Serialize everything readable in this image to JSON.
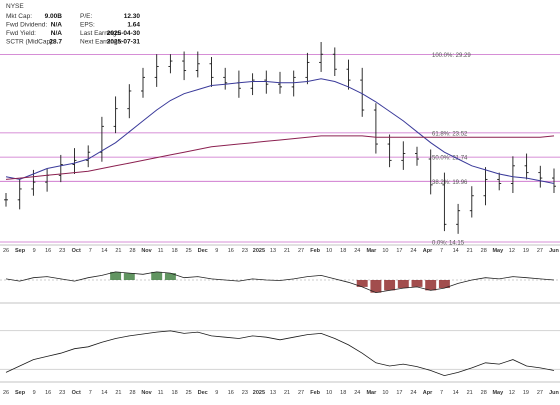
{
  "header": {
    "exchange_label": "NYSE",
    "stats": [
      {
        "label": "Mkt Cap:",
        "value": "9.00B"
      },
      {
        "label": "Fwd Dividend:",
        "value": "N/A"
      },
      {
        "label": "Fwd Yield:",
        "value": "N/A"
      },
      {
        "label": "SCTR (MidCap):",
        "value": "28.7"
      }
    ],
    "stats2": [
      {
        "label": "P/E:",
        "value": "12.30"
      },
      {
        "label": "EPS:",
        "value": "1.64"
      },
      {
        "label": "Last Earnings:",
        "value": "2025-04-30"
      },
      {
        "label": "Next Earnings:",
        "value": "2025-07-31"
      }
    ]
  },
  "chart_data": [
    {
      "type": "line",
      "panel": "price",
      "style": "ohlc-bars",
      "ylim": [
        15.5,
        30.2
      ],
      "dates": [
        "2024-08-26",
        "2024-09-03",
        "2024-09-09",
        "2024-09-16",
        "2024-09-23",
        "2024-09-30",
        "2024-10-07",
        "2024-10-14",
        "2024-10-21",
        "2024-10-28",
        "2024-11-04",
        "2024-11-11",
        "2024-11-18",
        "2024-11-25",
        "2024-12-02",
        "2024-12-09",
        "2024-12-16",
        "2024-12-23",
        "2024-12-30",
        "2025-01-06",
        "2025-01-13",
        "2025-01-21",
        "2025-01-27",
        "2025-02-03",
        "2025-02-10",
        "2025-02-18",
        "2025-02-24",
        "2025-03-03",
        "2025-03-10",
        "2025-03-17",
        "2025-03-24",
        "2025-03-31",
        "2025-04-07",
        "2025-04-14",
        "2025-04-21",
        "2025-04-28",
        "2025-05-05",
        "2025-05-12",
        "2025-05-19",
        "2025-05-27",
        "2025-06-02"
      ],
      "series": [
        {
          "values": [
            18.6,
            19.4,
            19.9,
            20.4,
            21.2,
            21.5,
            22.1,
            24.0,
            25.3,
            26.6,
            27.6,
            28.4,
            28.8,
            28.1,
            28.6,
            27.6,
            27.2,
            26.8,
            27.4,
            27.1,
            26.9,
            27.6,
            28.7,
            29.3,
            28.2,
            27.4,
            25.2,
            22.7,
            21.5,
            22.0,
            21.6,
            19.7,
            16.8,
            17.8,
            18.9,
            20.1,
            19.8,
            21.1,
            20.6,
            20.2,
            19.6
          ]
        },
        {
          "values": [
            20.3,
            20.1,
            20.5,
            20.9,
            21.1,
            21.3,
            21.6,
            22.2,
            22.8,
            23.6,
            24.4,
            25.2,
            25.9,
            26.4,
            26.7,
            27.0,
            27.1,
            27.2,
            27.3,
            27.3,
            27.2,
            27.2,
            27.3,
            27.5,
            27.3,
            26.9,
            26.4,
            25.8,
            25.1,
            24.4,
            23.6,
            22.8,
            22.1,
            21.6,
            21.1,
            20.8,
            20.5,
            20.3,
            20.2,
            20.0,
            19.8
          ]
        },
        {
          "values": [
            20.1,
            20.2,
            20.3,
            20.4,
            20.5,
            20.6,
            20.7,
            20.9,
            21.1,
            21.3,
            21.5,
            21.7,
            21.9,
            22.1,
            22.3,
            22.5,
            22.6,
            22.7,
            22.8,
            22.9,
            23.0,
            23.1,
            23.2,
            23.3,
            23.3,
            23.3,
            23.3,
            23.2,
            23.2,
            23.2,
            23.2,
            23.2,
            23.2,
            23.2,
            23.2,
            23.2,
            23.2,
            23.2,
            23.2,
            23.2,
            23.3
          ]
        }
      ],
      "fib_levels": [
        {
          "label": "100.0%: 29.29",
          "value": 29.29
        },
        {
          "label": "61.8%: 23.52",
          "value": 23.52
        },
        {
          "label": "50.0%: 21.74",
          "value": 21.74
        },
        {
          "label": "38.2%: 19.96",
          "value": 19.96
        },
        {
          "label": "0.0%: 14.15",
          "value": 14.15
        }
      ]
    },
    {
      "type": "line",
      "panel": "indicator-1",
      "ylim": [
        -1,
        1
      ],
      "values": [
        0.05,
        -0.05,
        0.1,
        0.15,
        0.05,
        -0.05,
        0.1,
        0.2,
        0.35,
        0.3,
        0.25,
        0.35,
        0.3,
        0.1,
        0.15,
        0.05,
        0.0,
        -0.05,
        0.05,
        0.0,
        -0.02,
        0.05,
        0.15,
        0.2,
        0.05,
        -0.1,
        -0.3,
        -0.55,
        -0.45,
        -0.35,
        -0.3,
        -0.45,
        -0.35,
        -0.15,
        0.0,
        0.1,
        0.05,
        0.15,
        0.1,
        0.05,
        0.0
      ]
    },
    {
      "type": "line",
      "panel": "indicator-2",
      "ylim": [
        0,
        100
      ],
      "values": [
        15,
        25,
        35,
        40,
        45,
        52,
        55,
        62,
        68,
        72,
        75,
        78,
        80,
        76,
        78,
        72,
        70,
        68,
        72,
        70,
        66,
        70,
        74,
        76,
        68,
        58,
        45,
        30,
        25,
        28,
        24,
        18,
        10,
        15,
        22,
        30,
        28,
        35,
        25,
        22,
        18
      ]
    }
  ],
  "x_axis": {
    "ticks": [
      "26",
      "Sep",
      "9",
      "16",
      "23",
      "Oct",
      "7",
      "14",
      "21",
      "28",
      "Nov",
      "11",
      "18",
      "25",
      "Dec",
      "9",
      "16",
      "23",
      "2025",
      "13",
      "21",
      "27",
      "Feb",
      "10",
      "18",
      "24",
      "Mar",
      "10",
      "17",
      "24",
      "Apr",
      "7",
      "14",
      "21",
      "28",
      "May",
      "12",
      "19",
      "27",
      "Jun"
    ]
  },
  "colors": {
    "price": "#1a1a1a",
    "sma_short": "#3a3a9a",
    "sma_long": "#8b2050",
    "fib": "#c050c0",
    "indicator_fill_pos": "#3a7a3a",
    "indicator_fill_neg": "#8b2020"
  }
}
